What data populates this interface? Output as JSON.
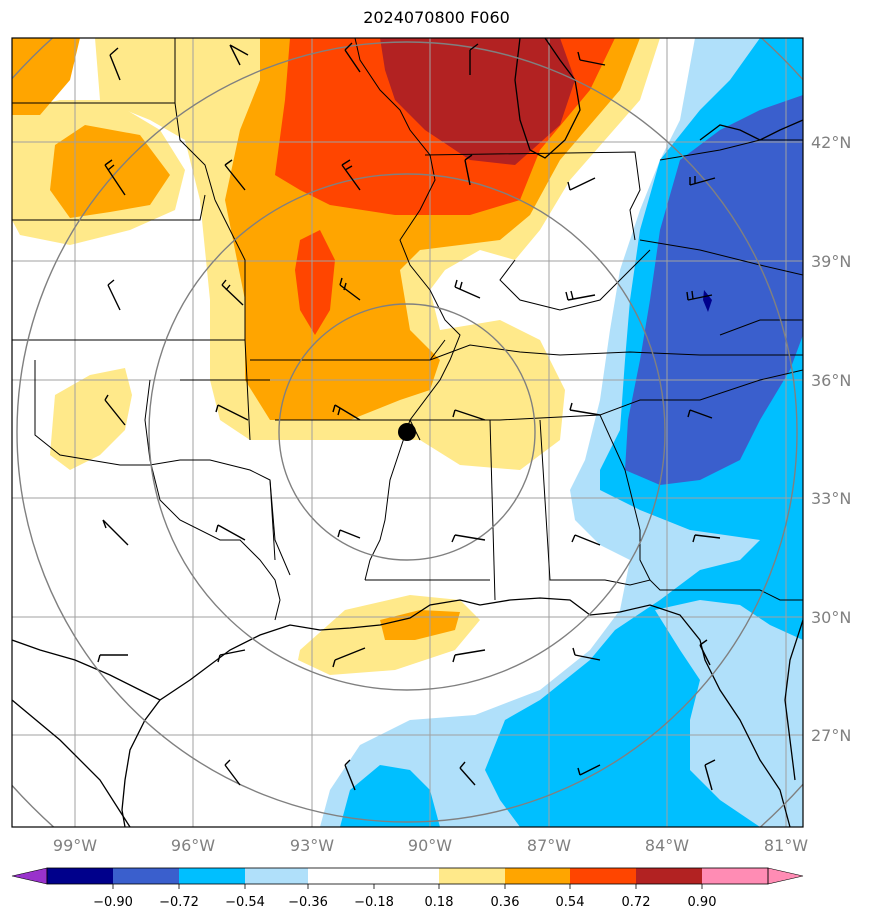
{
  "title": "2024070800 F060",
  "colors": {
    "frame": "#000000",
    "grid": "#a0a0a0",
    "rings": "#808080",
    "land_lines": "#000000"
  },
  "lat_labels": [
    "42°N",
    "39°N",
    "36°N",
    "33°N",
    "30°N",
    "27°N"
  ],
  "lon_labels": [
    "99°W",
    "96°W",
    "93°W",
    "90°W",
    "87°W",
    "84°W",
    "81°W"
  ],
  "station_marker": {
    "lat": 35.0,
    "lon": -90.0,
    "label": ""
  },
  "colorbar": {
    "ticks": [
      "−0.90",
      "−0.72",
      "−0.54",
      "−0.36",
      "−0.18",
      "0.18",
      "0.36",
      "0.54",
      "0.72",
      "0.90"
    ],
    "colors": [
      "#9932cc",
      "#00008b",
      "#3a5fcd",
      "#00bfff",
      "#b0e0fa",
      "#ffffff",
      "#ffe98a",
      "#ffa500",
      "#ff4500",
      "#b22222",
      "#ff8cb4"
    ]
  }
}
